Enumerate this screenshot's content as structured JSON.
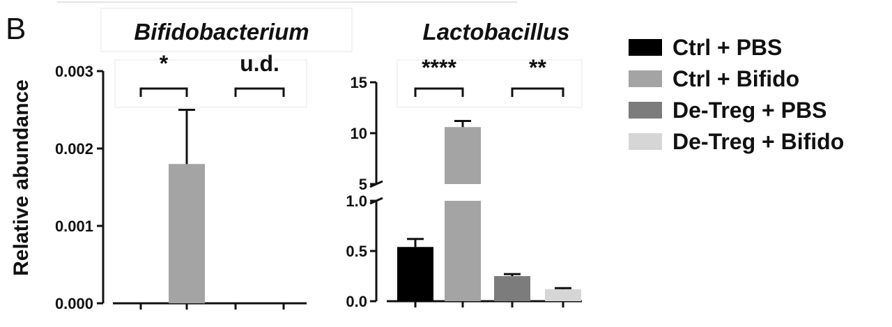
{
  "panel_label": "B",
  "ylabel": "Relative abundance",
  "colors": {
    "Ctrl + PBS": "#000000",
    "Ctrl + Bifido": "#a4a4a4",
    "De-Treg + PBS": "#7c7c7c",
    "De-Treg + Bifido": "#d6d6d6"
  },
  "chart_data": [
    {
      "type": "bar",
      "title": "Bifidobacterium",
      "categories": [
        "Ctrl + PBS",
        "Ctrl + Bifido",
        "De-Treg + PBS",
        "De-Treg + Bifido"
      ],
      "values": [
        0,
        0.0018,
        0,
        0
      ],
      "errors": [
        0,
        0.0007,
        0,
        0
      ],
      "ylim": [
        0,
        0.003
      ],
      "yticks": [
        "0.000",
        "0.001",
        "0.002",
        "0.003"
      ],
      "significance": [
        {
          "label": "*",
          "groups": [
            "Ctrl + PBS",
            "Ctrl + Bifido"
          ]
        },
        {
          "label": "u.d.",
          "groups": [
            "De-Treg + PBS",
            "De-Treg + Bifido"
          ]
        }
      ]
    },
    {
      "type": "bar",
      "title": "Lactobacillus",
      "categories": [
        "Ctrl + PBS",
        "Ctrl + Bifido",
        "De-Treg + PBS",
        "De-Treg + Bifido"
      ],
      "values": [
        0.54,
        10.6,
        0.25,
        0.12
      ],
      "errors": [
        0.08,
        0.6,
        0.02,
        0.01
      ],
      "ylim": [
        0,
        15
      ],
      "axis_break": {
        "lower": [
          0,
          1.0
        ],
        "upper": [
          5,
          15
        ]
      },
      "yticks": [
        "0.0",
        "0.5",
        "1.0",
        "5",
        "10",
        "15"
      ],
      "significance": [
        {
          "label": "****",
          "groups": [
            "Ctrl + PBS",
            "Ctrl + Bifido"
          ]
        },
        {
          "label": "**",
          "groups": [
            "De-Treg + PBS",
            "De-Treg + Bifido"
          ]
        }
      ]
    }
  ],
  "legend": {
    "placement": "right",
    "items": [
      "Ctrl + PBS",
      "Ctrl + Bifido",
      "De-Treg + PBS",
      "De-Treg + Bifido"
    ]
  }
}
